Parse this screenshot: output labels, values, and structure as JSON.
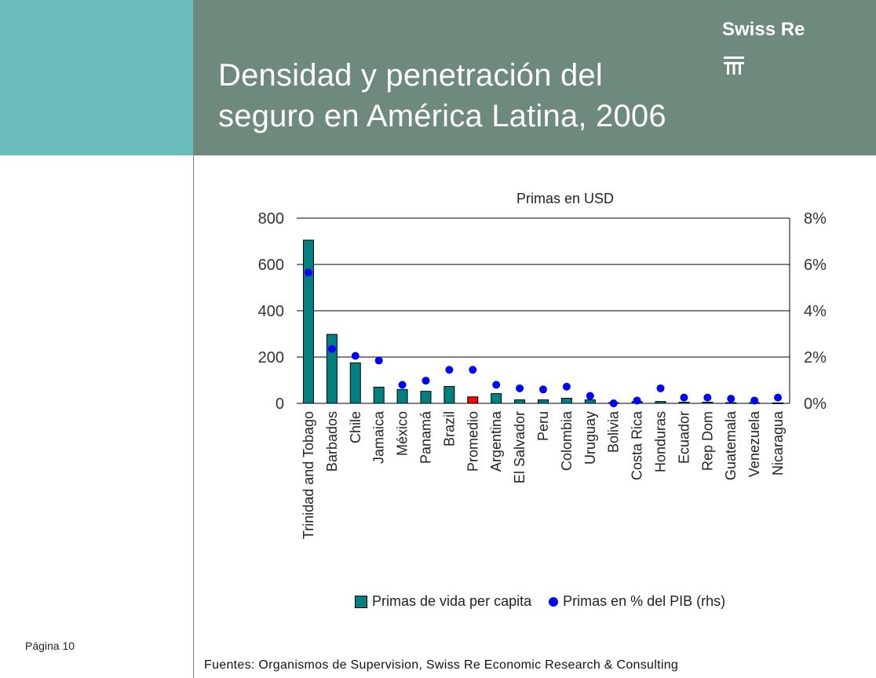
{
  "header": {
    "title_line1": "Densidad y penetración del",
    "title_line2": "seguro en América Latina, 2006",
    "logo_text": "Swiss Re"
  },
  "footer": {
    "page": "Página 10",
    "source": "Fuentes: Organismos de Supervision, Swiss Re Economic Research & Consulting"
  },
  "colors": {
    "teal_block": "#6bbcbd",
    "header_bg": "#6e8a7d",
    "bar": "#008080",
    "bar_highlight": "#ff0000",
    "dot": "#0000ff"
  },
  "chart_data": {
    "type": "bar",
    "title": "Primas en USD",
    "categories": [
      "Trinidad and Tobago",
      "Barbados",
      "Chile",
      "Jamaica",
      "México",
      "Panamá",
      "Brazil",
      "Promedio",
      "Argentina",
      "El Salvador",
      "Peru",
      "Colombia",
      "Uruguay",
      "Bolivia",
      "Costa Rica",
      "Honduras",
      "Ecuador",
      "Rep Dom",
      "Guatemala",
      "Venezuela",
      "Nicaragua"
    ],
    "highlight_category": "Promedio",
    "series": [
      {
        "name": "Primas de vida per capita",
        "type": "bar",
        "axis": "left",
        "values": [
          705,
          298,
          175,
          70,
          60,
          52,
          73,
          28,
          42,
          15,
          15,
          22,
          15,
          3,
          8,
          8,
          5,
          5,
          3,
          3,
          2
        ]
      },
      {
        "name": "Primas en % del PIB  (rhs)",
        "type": "scatter",
        "axis": "right",
        "values": [
          5.65,
          2.35,
          2.05,
          1.85,
          0.8,
          0.98,
          1.45,
          1.45,
          0.8,
          0.65,
          0.6,
          0.72,
          0.32,
          0.0,
          0.12,
          0.65,
          0.25,
          0.25,
          0.2,
          0.12,
          0.25
        ]
      }
    ],
    "y_left": {
      "ticks": [
        "0",
        "200",
        "400",
        "600",
        "800"
      ],
      "ylim": [
        0,
        800
      ]
    },
    "y_right": {
      "ticks": [
        "0%",
        "2%",
        "4%",
        "6%",
        "8%"
      ],
      "ylim": [
        0,
        8
      ]
    },
    "grid": true,
    "legend_position": "bottom"
  }
}
